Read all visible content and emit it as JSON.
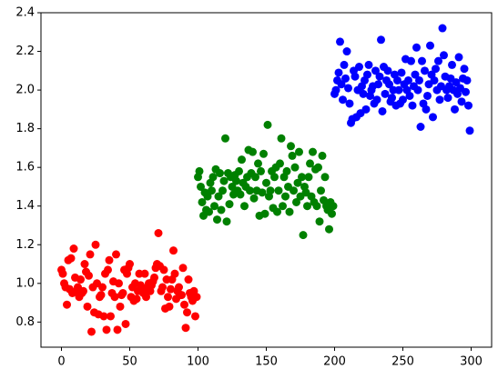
{
  "chart_data": {
    "type": "scatter",
    "xlim": [
      -15,
      315
    ],
    "xticks": [
      0,
      50,
      100,
      150,
      200,
      250,
      300
    ],
    "ylim": [
      0.67,
      2.4
    ],
    "yticks": [
      0.8,
      {
        "value": 1,
        "label": "1.0"
      },
      1.2,
      1.4,
      1.6,
      1.8,
      {
        "value": 2,
        "label": "2.0"
      },
      2.2,
      2.4
    ],
    "series": [
      {
        "color": "#ff0000",
        "x": [
          0,
          1,
          2,
          3,
          4,
          5,
          6,
          7,
          8,
          9,
          10,
          11,
          12,
          13,
          14,
          15,
          16,
          17,
          18,
          19,
          20,
          21,
          22,
          23,
          24,
          25,
          26,
          27,
          28,
          29,
          30,
          31,
          32,
          33,
          34,
          35,
          36,
          37,
          38,
          39,
          40,
          41,
          42,
          43,
          44,
          45,
          46,
          47,
          48,
          49,
          50,
          51,
          52,
          53,
          54,
          55,
          56,
          57,
          58,
          59,
          60,
          61,
          62,
          63,
          64,
          65,
          66,
          67,
          68,
          69,
          70,
          71,
          72,
          73,
          74,
          75,
          76,
          77,
          78,
          79,
          80,
          81,
          82,
          83,
          84,
          85,
          86,
          87,
          88,
          89,
          90,
          91,
          92,
          93,
          94,
          95,
          96,
          97,
          98,
          99
        ],
        "values": [
          1.07,
          1.05,
          1.0,
          0.98,
          0.89,
          1.12,
          0.97,
          1.13,
          0.95,
          1.18,
          1.03,
          0.96,
          0.98,
          0.93,
          1.02,
          0.95,
          0.96,
          1.1,
          1.06,
          0.88,
          1.04,
          1.15,
          0.75,
          0.98,
          0.85,
          1.2,
          1.0,
          0.84,
          0.93,
          0.94,
          0.98,
          0.83,
          1.05,
          0.76,
          1.07,
          1.12,
          0.83,
          0.95,
          1.01,
          0.93,
          1.15,
          0.76,
          1.0,
          0.88,
          0.94,
          0.95,
          1.07,
          0.79,
          1.05,
          1.08,
          1.1,
          0.93,
          0.98,
          0.91,
          1.0,
          0.92,
          0.96,
          1.05,
          0.99,
          0.96,
          0.95,
          1.05,
          0.93,
          0.98,
          1.0,
          0.96,
          0.99,
          1.01,
          1.03,
          1.08,
          1.1,
          1.26,
          1.09,
          0.96,
          0.98,
          1.07,
          0.87,
          1.02,
          0.93,
          0.88,
          0.97,
          1.02,
          1.17,
          1.05,
          0.92,
          0.96,
          0.98,
          0.94,
          0.94,
          1.08,
          0.89,
          0.77,
          0.85,
          1.02,
          0.95,
          0.93,
          0.91,
          0.96,
          0.83,
          0.93
        ]
      },
      {
        "color": "#008000",
        "x": [
          100,
          101,
          102,
          103,
          104,
          105,
          106,
          107,
          108,
          109,
          110,
          111,
          112,
          113,
          114,
          115,
          116,
          117,
          118,
          119,
          120,
          121,
          122,
          123,
          124,
          125,
          126,
          127,
          128,
          129,
          130,
          131,
          132,
          133,
          134,
          135,
          136,
          137,
          138,
          139,
          140,
          141,
          142,
          143,
          144,
          145,
          146,
          147,
          148,
          149,
          150,
          151,
          152,
          153,
          154,
          155,
          156,
          157,
          158,
          159,
          160,
          161,
          162,
          163,
          164,
          165,
          166,
          167,
          168,
          169,
          170,
          171,
          172,
          173,
          174,
          175,
          176,
          177,
          178,
          179,
          180,
          181,
          182,
          183,
          184,
          185,
          186,
          187,
          188,
          189,
          190,
          191,
          192,
          193,
          194,
          195,
          196,
          197,
          198,
          199
        ],
        "values": [
          1.55,
          1.58,
          1.5,
          1.42,
          1.35,
          1.47,
          1.38,
          1.45,
          1.37,
          1.52,
          1.48,
          1.55,
          1.4,
          1.59,
          1.33,
          1.45,
          1.57,
          1.38,
          1.48,
          1.53,
          1.75,
          1.32,
          1.57,
          1.41,
          1.55,
          1.5,
          1.46,
          1.56,
          1.53,
          1.48,
          1.58,
          1.46,
          1.64,
          1.52,
          1.4,
          1.5,
          1.55,
          1.69,
          1.48,
          1.57,
          1.68,
          1.44,
          1.55,
          1.48,
          1.62,
          1.35,
          1.58,
          1.47,
          1.67,
          1.36,
          1.52,
          1.82,
          1.45,
          1.48,
          1.58,
          1.39,
          1.55,
          1.6,
          1.37,
          1.48,
          1.62,
          1.75,
          1.4,
          1.55,
          1.45,
          1.58,
          1.5,
          1.37,
          1.71,
          1.66,
          1.48,
          1.6,
          1.42,
          1.52,
          1.68,
          1.45,
          1.55,
          1.25,
          1.5,
          1.47,
          1.4,
          1.55,
          1.62,
          1.45,
          1.68,
          1.42,
          1.59,
          1.4,
          1.6,
          1.32,
          1.48,
          1.66,
          1.43,
          1.55,
          1.4,
          1.38,
          1.28,
          1.42,
          1.36,
          1.4
        ]
      },
      {
        "color": "#0000ff",
        "x": [
          200,
          201,
          202,
          203,
          204,
          205,
          206,
          207,
          208,
          209,
          210,
          211,
          212,
          213,
          214,
          215,
          216,
          217,
          218,
          219,
          220,
          221,
          222,
          223,
          224,
          225,
          226,
          227,
          228,
          229,
          230,
          231,
          232,
          233,
          234,
          235,
          236,
          237,
          238,
          239,
          240,
          241,
          242,
          243,
          244,
          245,
          246,
          247,
          248,
          249,
          250,
          251,
          252,
          253,
          254,
          255,
          256,
          257,
          258,
          259,
          260,
          261,
          262,
          263,
          264,
          265,
          266,
          267,
          268,
          269,
          270,
          271,
          272,
          273,
          274,
          275,
          276,
          277,
          278,
          279,
          280,
          281,
          282,
          283,
          284,
          285,
          286,
          287,
          288,
          289,
          290,
          291,
          292,
          293,
          294,
          295,
          296,
          297,
          298,
          299
        ],
        "values": [
          1.98,
          2.0,
          2.05,
          2.09,
          2.25,
          2.03,
          1.95,
          2.13,
          2.06,
          2.2,
          2.01,
          1.93,
          1.83,
          1.85,
          2.1,
          2.07,
          1.86,
          2.0,
          2.12,
          1.88,
          2.02,
          1.98,
          2.05,
          1.9,
          2.08,
          2.13,
          1.97,
          2.0,
          2.02,
          1.93,
          2.1,
          1.95,
          2.03,
          2.07,
          2.26,
          1.89,
          2.12,
          1.98,
          2.05,
          2.1,
          2.03,
          1.94,
          1.96,
          2.0,
          2.08,
          1.92,
          2.05,
          2.0,
          1.93,
          2.09,
          1.95,
          2.03,
          2.16,
          2.0,
          2.05,
          1.97,
          2.15,
          1.92,
          2.02,
          2.08,
          2.22,
          2.0,
          2.05,
          1.81,
          2.15,
          1.93,
          2.1,
          1.9,
          1.97,
          2.03,
          2.23,
          2.08,
          1.86,
          2.05,
          2.11,
          2.0,
          2.15,
          1.95,
          2.02,
          2.32,
          2.18,
          2.07,
          2.0,
          1.96,
          2.02,
          2.06,
          2.13,
          2.0,
          1.9,
          2.04,
          1.98,
          2.17,
          2.01,
          1.94,
          2.06,
          2.11,
          1.99,
          2.05,
          1.92,
          1.79
        ]
      }
    ]
  }
}
